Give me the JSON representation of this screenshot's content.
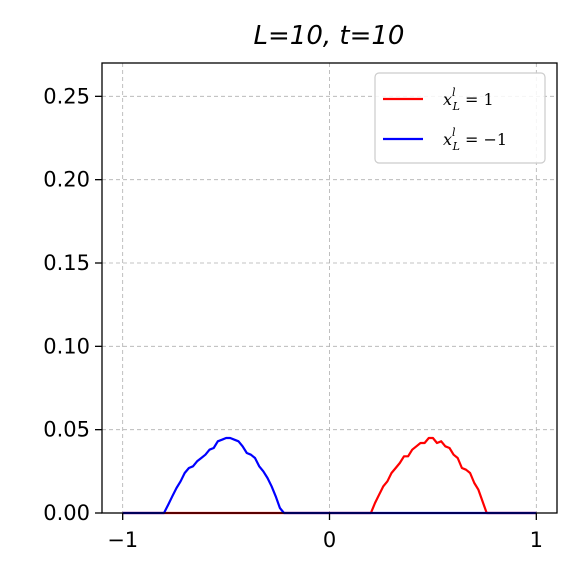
{
  "chart_data": {
    "type": "line",
    "title": "L=10, t=10",
    "xlabel": "",
    "ylabel": "",
    "xlim": [
      -1.1,
      1.1
    ],
    "ylim": [
      0,
      0.27
    ],
    "xticks": [
      -1,
      0,
      1
    ],
    "xtick_labels": [
      "−1",
      "0",
      "1"
    ],
    "yticks": [
      0.0,
      0.05,
      0.1,
      0.15,
      0.2,
      0.25
    ],
    "ytick_labels": [
      "0.00",
      "0.05",
      "0.10",
      "0.15",
      "0.20",
      "0.25"
    ],
    "grid": true,
    "legend_position": "top-right",
    "series": [
      {
        "name": "x_L^l = 1",
        "legend_main": "x",
        "legend_sub": "L",
        "legend_sup": "l",
        "legend_rest": " = 1",
        "color": "#ff0000",
        "x": [
          -1.0,
          0.2,
          0.22,
          0.24,
          0.26,
          0.28,
          0.3,
          0.32,
          0.34,
          0.36,
          0.38,
          0.4,
          0.42,
          0.44,
          0.46,
          0.48,
          0.5,
          0.52,
          0.54,
          0.56,
          0.58,
          0.6,
          0.62,
          0.64,
          0.66,
          0.68,
          0.7,
          0.72,
          0.74,
          0.76,
          0.8,
          1.0
        ],
        "y": [
          0.0,
          0.0,
          0.006,
          0.011,
          0.016,
          0.019,
          0.024,
          0.027,
          0.03,
          0.034,
          0.034,
          0.038,
          0.04,
          0.042,
          0.042,
          0.045,
          0.045,
          0.042,
          0.043,
          0.04,
          0.039,
          0.035,
          0.033,
          0.027,
          0.026,
          0.024,
          0.018,
          0.014,
          0.007,
          0.0,
          0.0,
          0.0
        ]
      },
      {
        "name": "x_L^l = −1",
        "legend_main": "x",
        "legend_sub": "L",
        "legend_sup": "l",
        "legend_rest": " = −1",
        "color": "#0000ff",
        "x": [
          -1.0,
          -0.8,
          -0.78,
          -0.76,
          -0.74,
          -0.72,
          -0.7,
          -0.68,
          -0.66,
          -0.64,
          -0.62,
          -0.6,
          -0.58,
          -0.56,
          -0.54,
          -0.52,
          -0.5,
          -0.48,
          -0.46,
          -0.44,
          -0.42,
          -0.4,
          -0.38,
          -0.36,
          -0.34,
          -0.32,
          -0.3,
          -0.28,
          -0.26,
          -0.24,
          -0.22,
          0.2,
          1.0
        ],
        "y": [
          0.0,
          0.0,
          0.005,
          0.01,
          0.015,
          0.019,
          0.024,
          0.027,
          0.028,
          0.031,
          0.033,
          0.035,
          0.038,
          0.039,
          0.043,
          0.044,
          0.045,
          0.045,
          0.044,
          0.043,
          0.04,
          0.036,
          0.035,
          0.033,
          0.028,
          0.025,
          0.021,
          0.016,
          0.01,
          0.003,
          0.0,
          0.0,
          0.0
        ]
      }
    ]
  }
}
